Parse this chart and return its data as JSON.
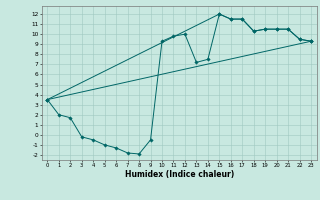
{
  "xlabel": "Humidex (Indice chaleur)",
  "bg_color": "#c8e8e0",
  "line_color": "#006666",
  "grid_color": "#a0c8c0",
  "xlim": [
    -0.5,
    23.5
  ],
  "ylim": [
    -2.5,
    12.8
  ],
  "xticks": [
    0,
    1,
    2,
    3,
    4,
    5,
    6,
    7,
    8,
    9,
    10,
    11,
    12,
    13,
    14,
    15,
    16,
    17,
    18,
    19,
    20,
    21,
    22,
    23
  ],
  "yticks": [
    -2,
    -1,
    0,
    1,
    2,
    3,
    4,
    5,
    6,
    7,
    8,
    9,
    10,
    11,
    12
  ],
  "line1_x": [
    0,
    1,
    2,
    3,
    4,
    5,
    6,
    7,
    8,
    9,
    10,
    11,
    12,
    13,
    14,
    15,
    16,
    17,
    18,
    19,
    20,
    21,
    22,
    23
  ],
  "line1_y": [
    3.5,
    2.0,
    1.7,
    -0.2,
    -0.5,
    -1.0,
    -1.3,
    -1.8,
    -1.9,
    -0.5,
    9.3,
    9.8,
    10.0,
    7.2,
    7.5,
    12.0,
    11.5,
    11.5,
    10.3,
    10.5,
    10.5,
    10.5,
    9.5,
    9.3
  ],
  "line2_x": [
    0,
    15,
    16,
    17,
    18,
    19,
    20,
    21,
    22,
    23
  ],
  "line2_y": [
    3.5,
    12.0,
    11.5,
    11.5,
    10.3,
    10.5,
    10.5,
    10.5,
    9.5,
    9.3
  ],
  "line3_x": [
    0,
    23
  ],
  "line3_y": [
    3.5,
    9.3
  ]
}
